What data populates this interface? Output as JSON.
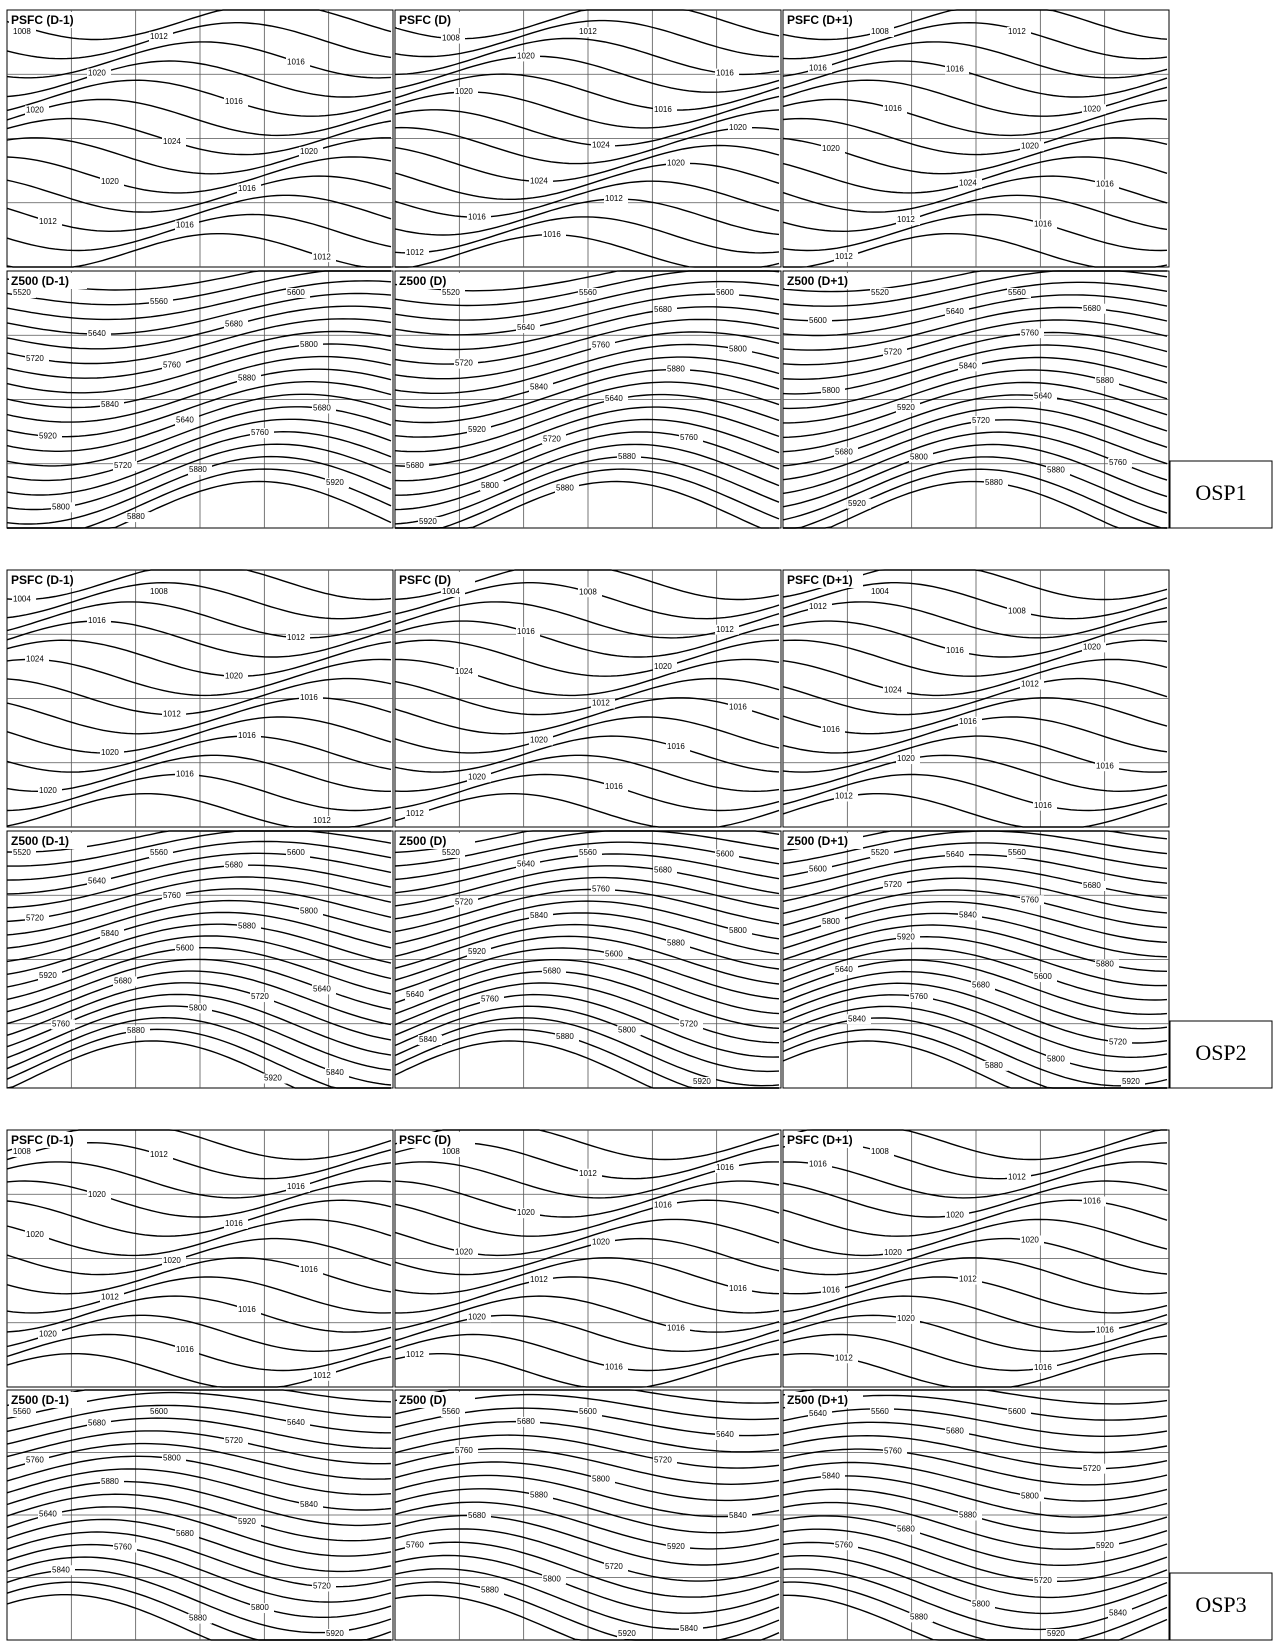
{
  "groups": [
    {
      "label": "OSP1",
      "panels": [
        {
          "title": "PSFC (D-1)",
          "labels": [
            1008,
            1012,
            1016,
            1020,
            1016,
            1020,
            1024,
            1020,
            1020,
            1016,
            1012,
            1016,
            1012
          ]
        },
        {
          "title": "PSFC (D)",
          "labels": [
            1008,
            1012,
            1016,
            1020,
            1016,
            1020,
            1024,
            1020,
            1024,
            1020,
            1016,
            1012,
            1012,
            1016
          ]
        },
        {
          "title": "PSFC (D+1)",
          "labels": [
            1008,
            1012,
            1016,
            1016,
            1020,
            1016,
            1020,
            1020,
            1024,
            1016,
            1012,
            1016,
            1012
          ]
        },
        {
          "title": "Z500 (D-1)",
          "labels": [
            5520,
            5560,
            5600,
            5640,
            5680,
            5720,
            5760,
            5800,
            5840,
            5880,
            5920,
            5640,
            5680,
            5720,
            5760,
            5800,
            5880,
            5920,
            5880
          ]
        },
        {
          "title": "Z500 (D)",
          "labels": [
            5520,
            5560,
            5600,
            5640,
            5680,
            5720,
            5760,
            5800,
            5840,
            5880,
            5920,
            5640,
            5680,
            5720,
            5760,
            5800,
            5880,
            5920,
            5880
          ]
        },
        {
          "title": "Z500 (D+1)",
          "labels": [
            5520,
            5560,
            5600,
            5640,
            5680,
            5720,
            5760,
            5800,
            5840,
            5880,
            5920,
            5640,
            5680,
            5720,
            5760,
            5800,
            5880,
            5920,
            5880
          ]
        }
      ]
    },
    {
      "label": "OSP2",
      "panels": [
        {
          "title": "PSFC (D-1)",
          "labels": [
            1004,
            1008,
            1012,
            1016,
            1020,
            1024,
            1012,
            1016,
            1020,
            1016,
            1020,
            1016,
            1012
          ]
        },
        {
          "title": "PSFC (D)",
          "labels": [
            1004,
            1008,
            1012,
            1016,
            1020,
            1024,
            1012,
            1016,
            1020,
            1016,
            1020,
            1016,
            1012
          ]
        },
        {
          "title": "PSFC (D+1)",
          "labels": [
            1004,
            1008,
            1012,
            1016,
            1020,
            1024,
            1012,
            1016,
            1016,
            1016,
            1020,
            1016,
            1012
          ]
        },
        {
          "title": "Z500 (D-1)",
          "labels": [
            5520,
            5560,
            5600,
            5640,
            5680,
            5720,
            5760,
            5800,
            5840,
            5880,
            5920,
            5600,
            5640,
            5680,
            5720,
            5760,
            5800,
            5840,
            5880,
            5920
          ]
        },
        {
          "title": "Z500 (D)",
          "labels": [
            5520,
            5560,
            5600,
            5640,
            5680,
            5720,
            5760,
            5800,
            5840,
            5880,
            5920,
            5600,
            5640,
            5680,
            5720,
            5760,
            5800,
            5840,
            5880,
            5920
          ]
        },
        {
          "title": "Z500 (D+1)",
          "labels": [
            5520,
            5560,
            5600,
            5640,
            5680,
            5720,
            5760,
            5800,
            5840,
            5880,
            5920,
            5600,
            5640,
            5680,
            5720,
            5760,
            5800,
            5840,
            5880,
            5920
          ]
        }
      ]
    },
    {
      "label": "OSP3",
      "panels": [
        {
          "title": "PSFC (D-1)",
          "labels": [
            1008,
            1012,
            1016,
            1020,
            1016,
            1020,
            1020,
            1016,
            1012,
            1016,
            1020,
            1016,
            1012
          ]
        },
        {
          "title": "PSFC (D)",
          "labels": [
            1008,
            1012,
            1016,
            1020,
            1016,
            1020,
            1020,
            1016,
            1012,
            1016,
            1020,
            1016,
            1012
          ]
        },
        {
          "title": "PSFC (D+1)",
          "labels": [
            1008,
            1012,
            1016,
            1020,
            1016,
            1020,
            1020,
            1016,
            1012,
            1016,
            1020,
            1016,
            1012
          ]
        },
        {
          "title": "Z500 (D-1)",
          "labels": [
            5560,
            5600,
            5640,
            5680,
            5720,
            5760,
            5800,
            5840,
            5880,
            5920,
            5640,
            5680,
            5720,
            5760,
            5800,
            5840,
            5880,
            5920
          ]
        },
        {
          "title": "Z500 (D)",
          "labels": [
            5560,
            5600,
            5640,
            5680,
            5720,
            5760,
            5800,
            5840,
            5880,
            5920,
            5680,
            5720,
            5760,
            5800,
            5840,
            5880,
            5920
          ]
        },
        {
          "title": "Z500 (D+1)",
          "labels": [
            5560,
            5600,
            5640,
            5680,
            5720,
            5760,
            5800,
            5840,
            5880,
            5920,
            5680,
            5720,
            5760,
            5800,
            5840,
            5880,
            5920
          ]
        }
      ]
    }
  ]
}
